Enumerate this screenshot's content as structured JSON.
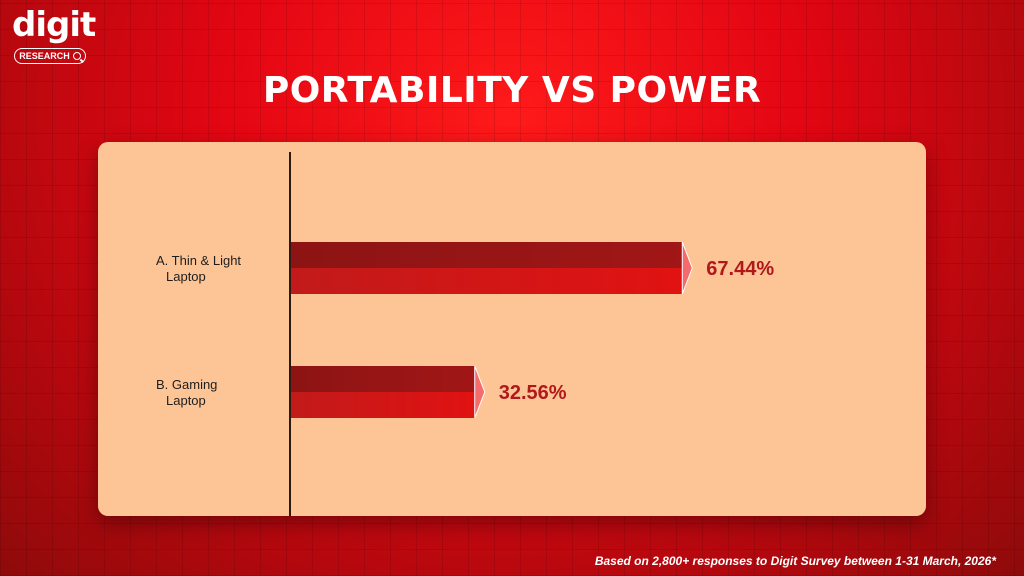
{
  "brand": {
    "logo_text": "digit",
    "badge_text": "RESEARCH",
    "badge_icon": "search-icon"
  },
  "chart_data": {
    "type": "bar",
    "orientation": "horizontal",
    "title": "PORTABILITY VS POWER",
    "xlim": [
      0,
      100
    ],
    "categories": [
      [
        "A. Thin & Light",
        "Laptop"
      ],
      [
        "B. Gaming",
        "Laptop"
      ]
    ],
    "values": [
      67.44,
      32.56
    ],
    "value_labels": [
      "67.44%",
      "32.56%"
    ],
    "grid": false,
    "colors": {
      "bar_top": "#a11616",
      "bar_bottom": "#e11212",
      "bar_end": "#f36b6b",
      "label": "#b0181c",
      "panel": "#fdc595",
      "axis": "#2b1a10"
    }
  },
  "footnote": "Based on 2,800+ responses to Digit Survey between 1-31 March, 2026*"
}
